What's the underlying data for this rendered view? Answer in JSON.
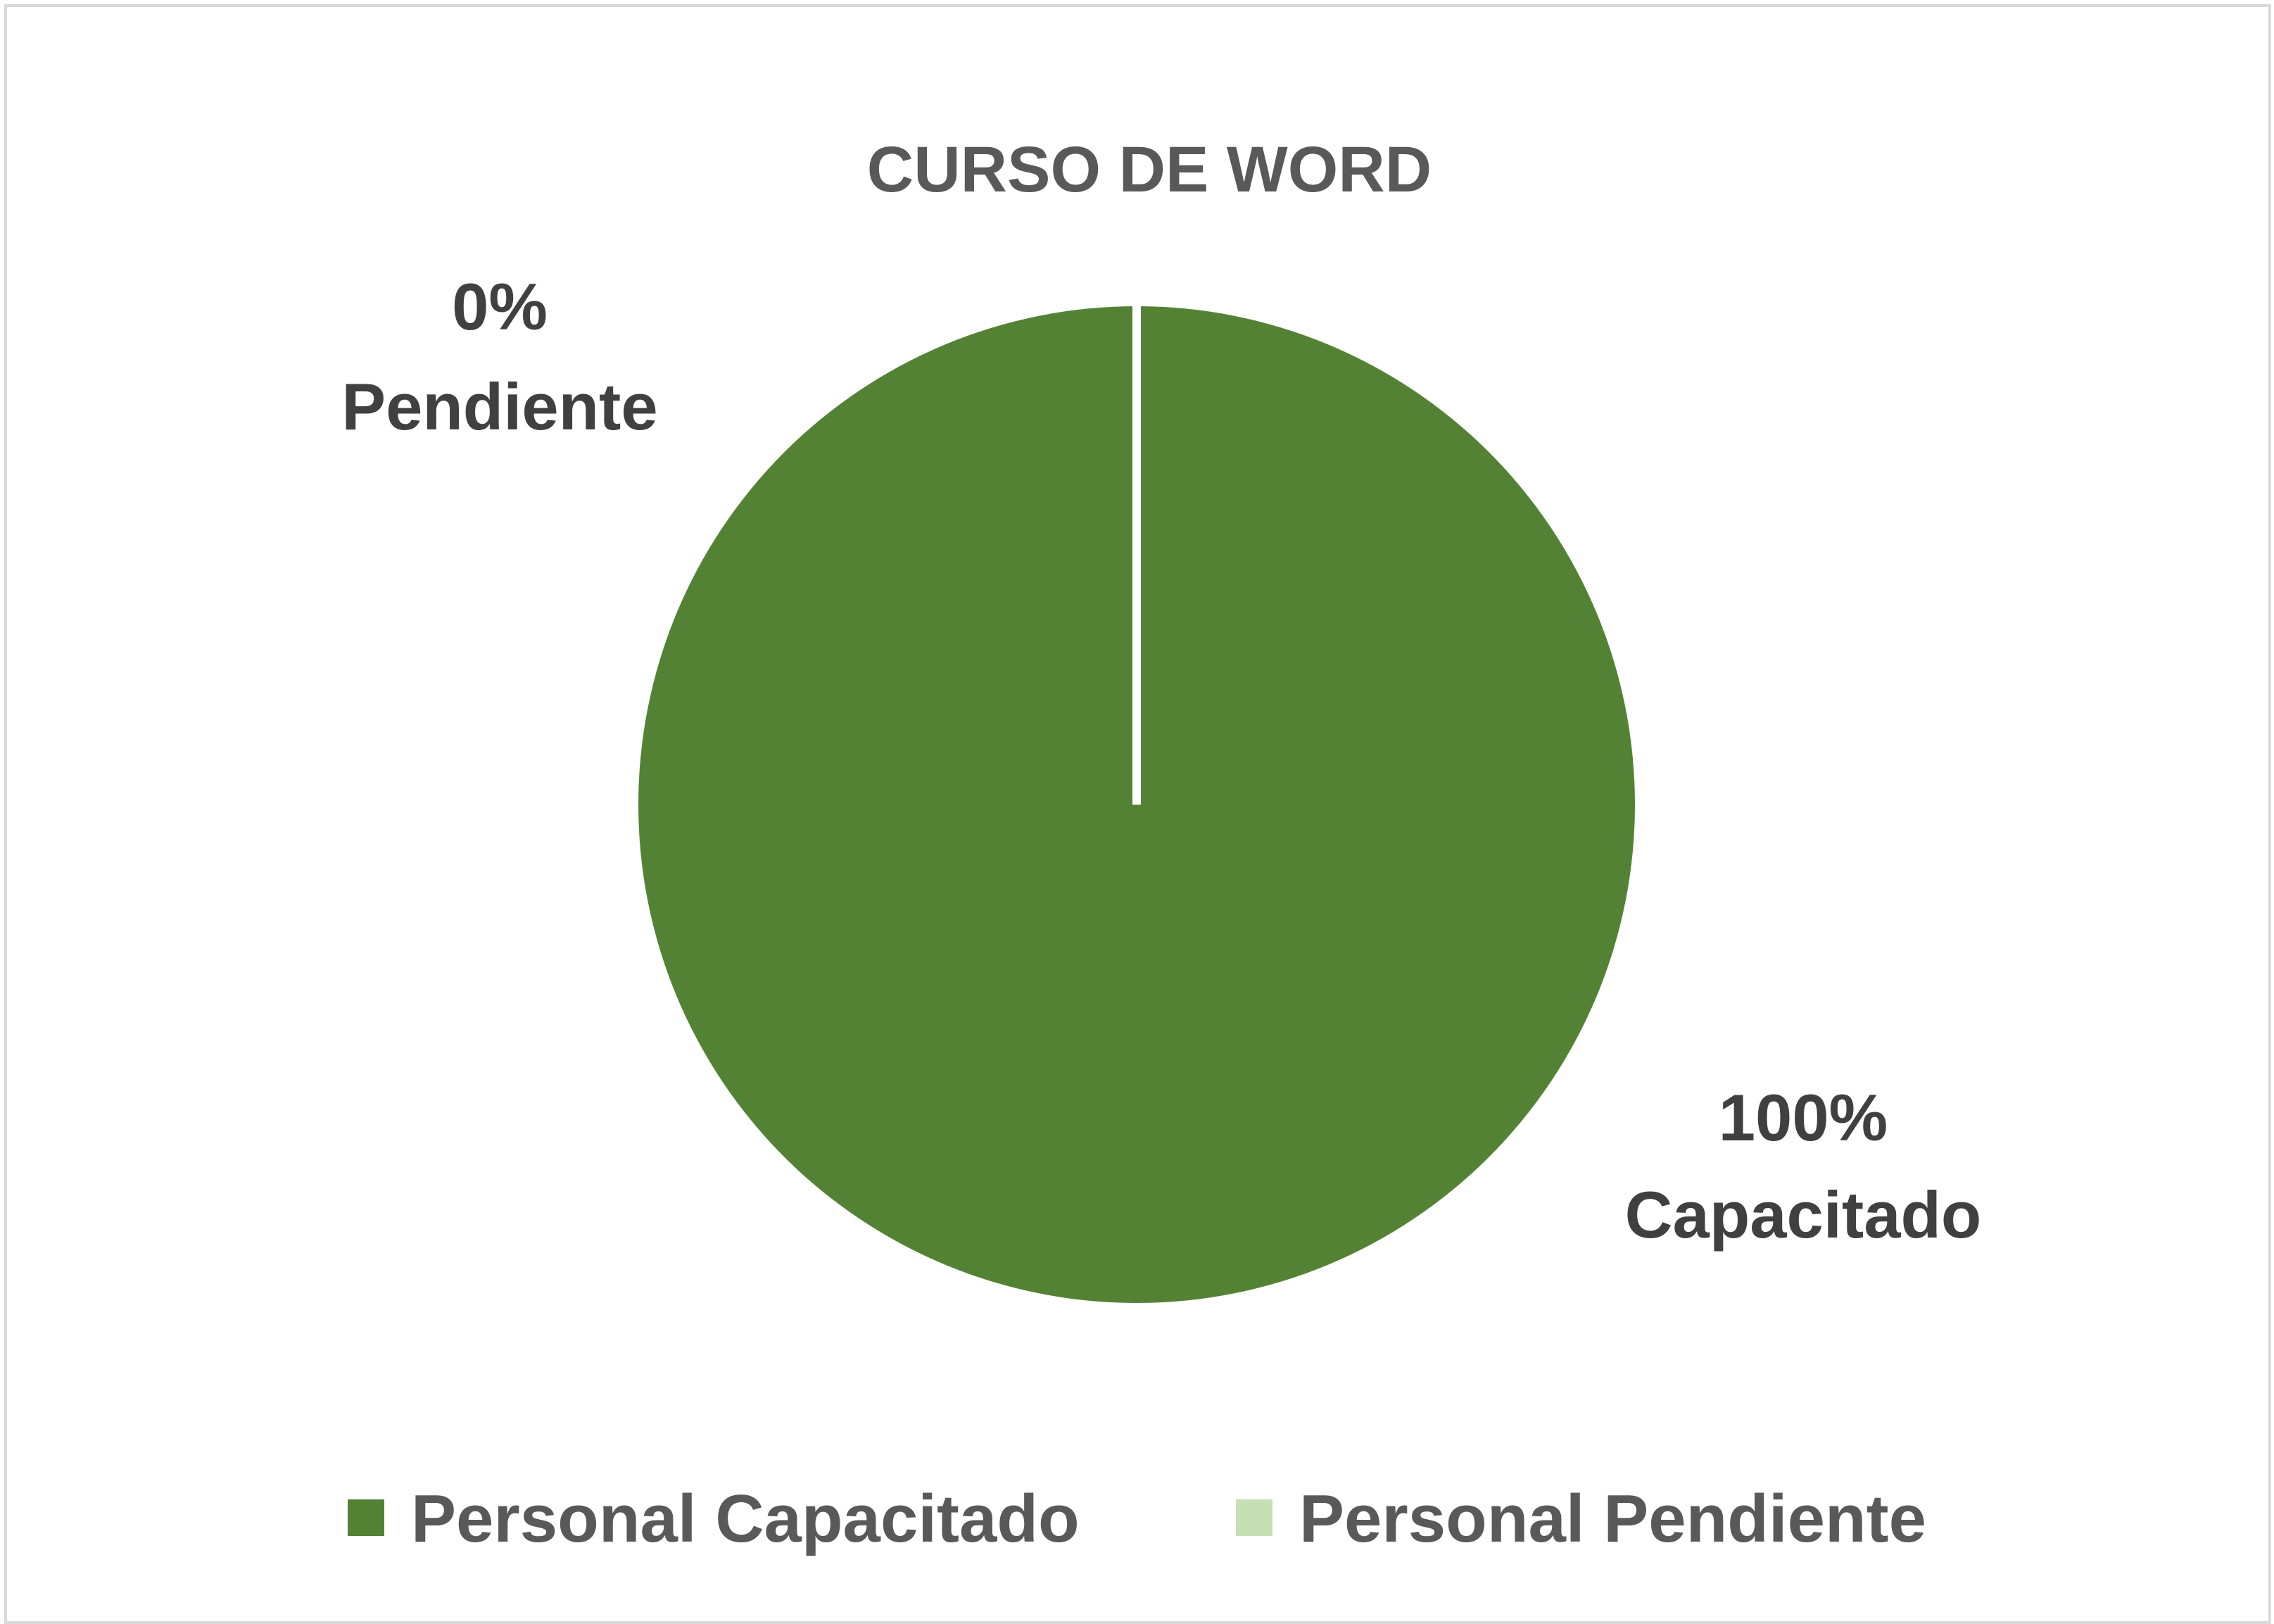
{
  "chart_data": {
    "type": "pie",
    "title": "CURSO DE WORD",
    "categories": [
      "Personal Capacitado",
      "Personal Pendiente"
    ],
    "values": [
      100,
      0
    ],
    "colors": [
      "#548235",
      "#c5e0b4"
    ],
    "data_labels": [
      {
        "value": "100%",
        "category": "Capacitado"
      },
      {
        "value": "0%",
        "category": "Pendiente"
      }
    ],
    "legend": {
      "position": "bottom",
      "items": [
        "Personal Capacitado",
        "Personal Pendiente"
      ]
    }
  }
}
